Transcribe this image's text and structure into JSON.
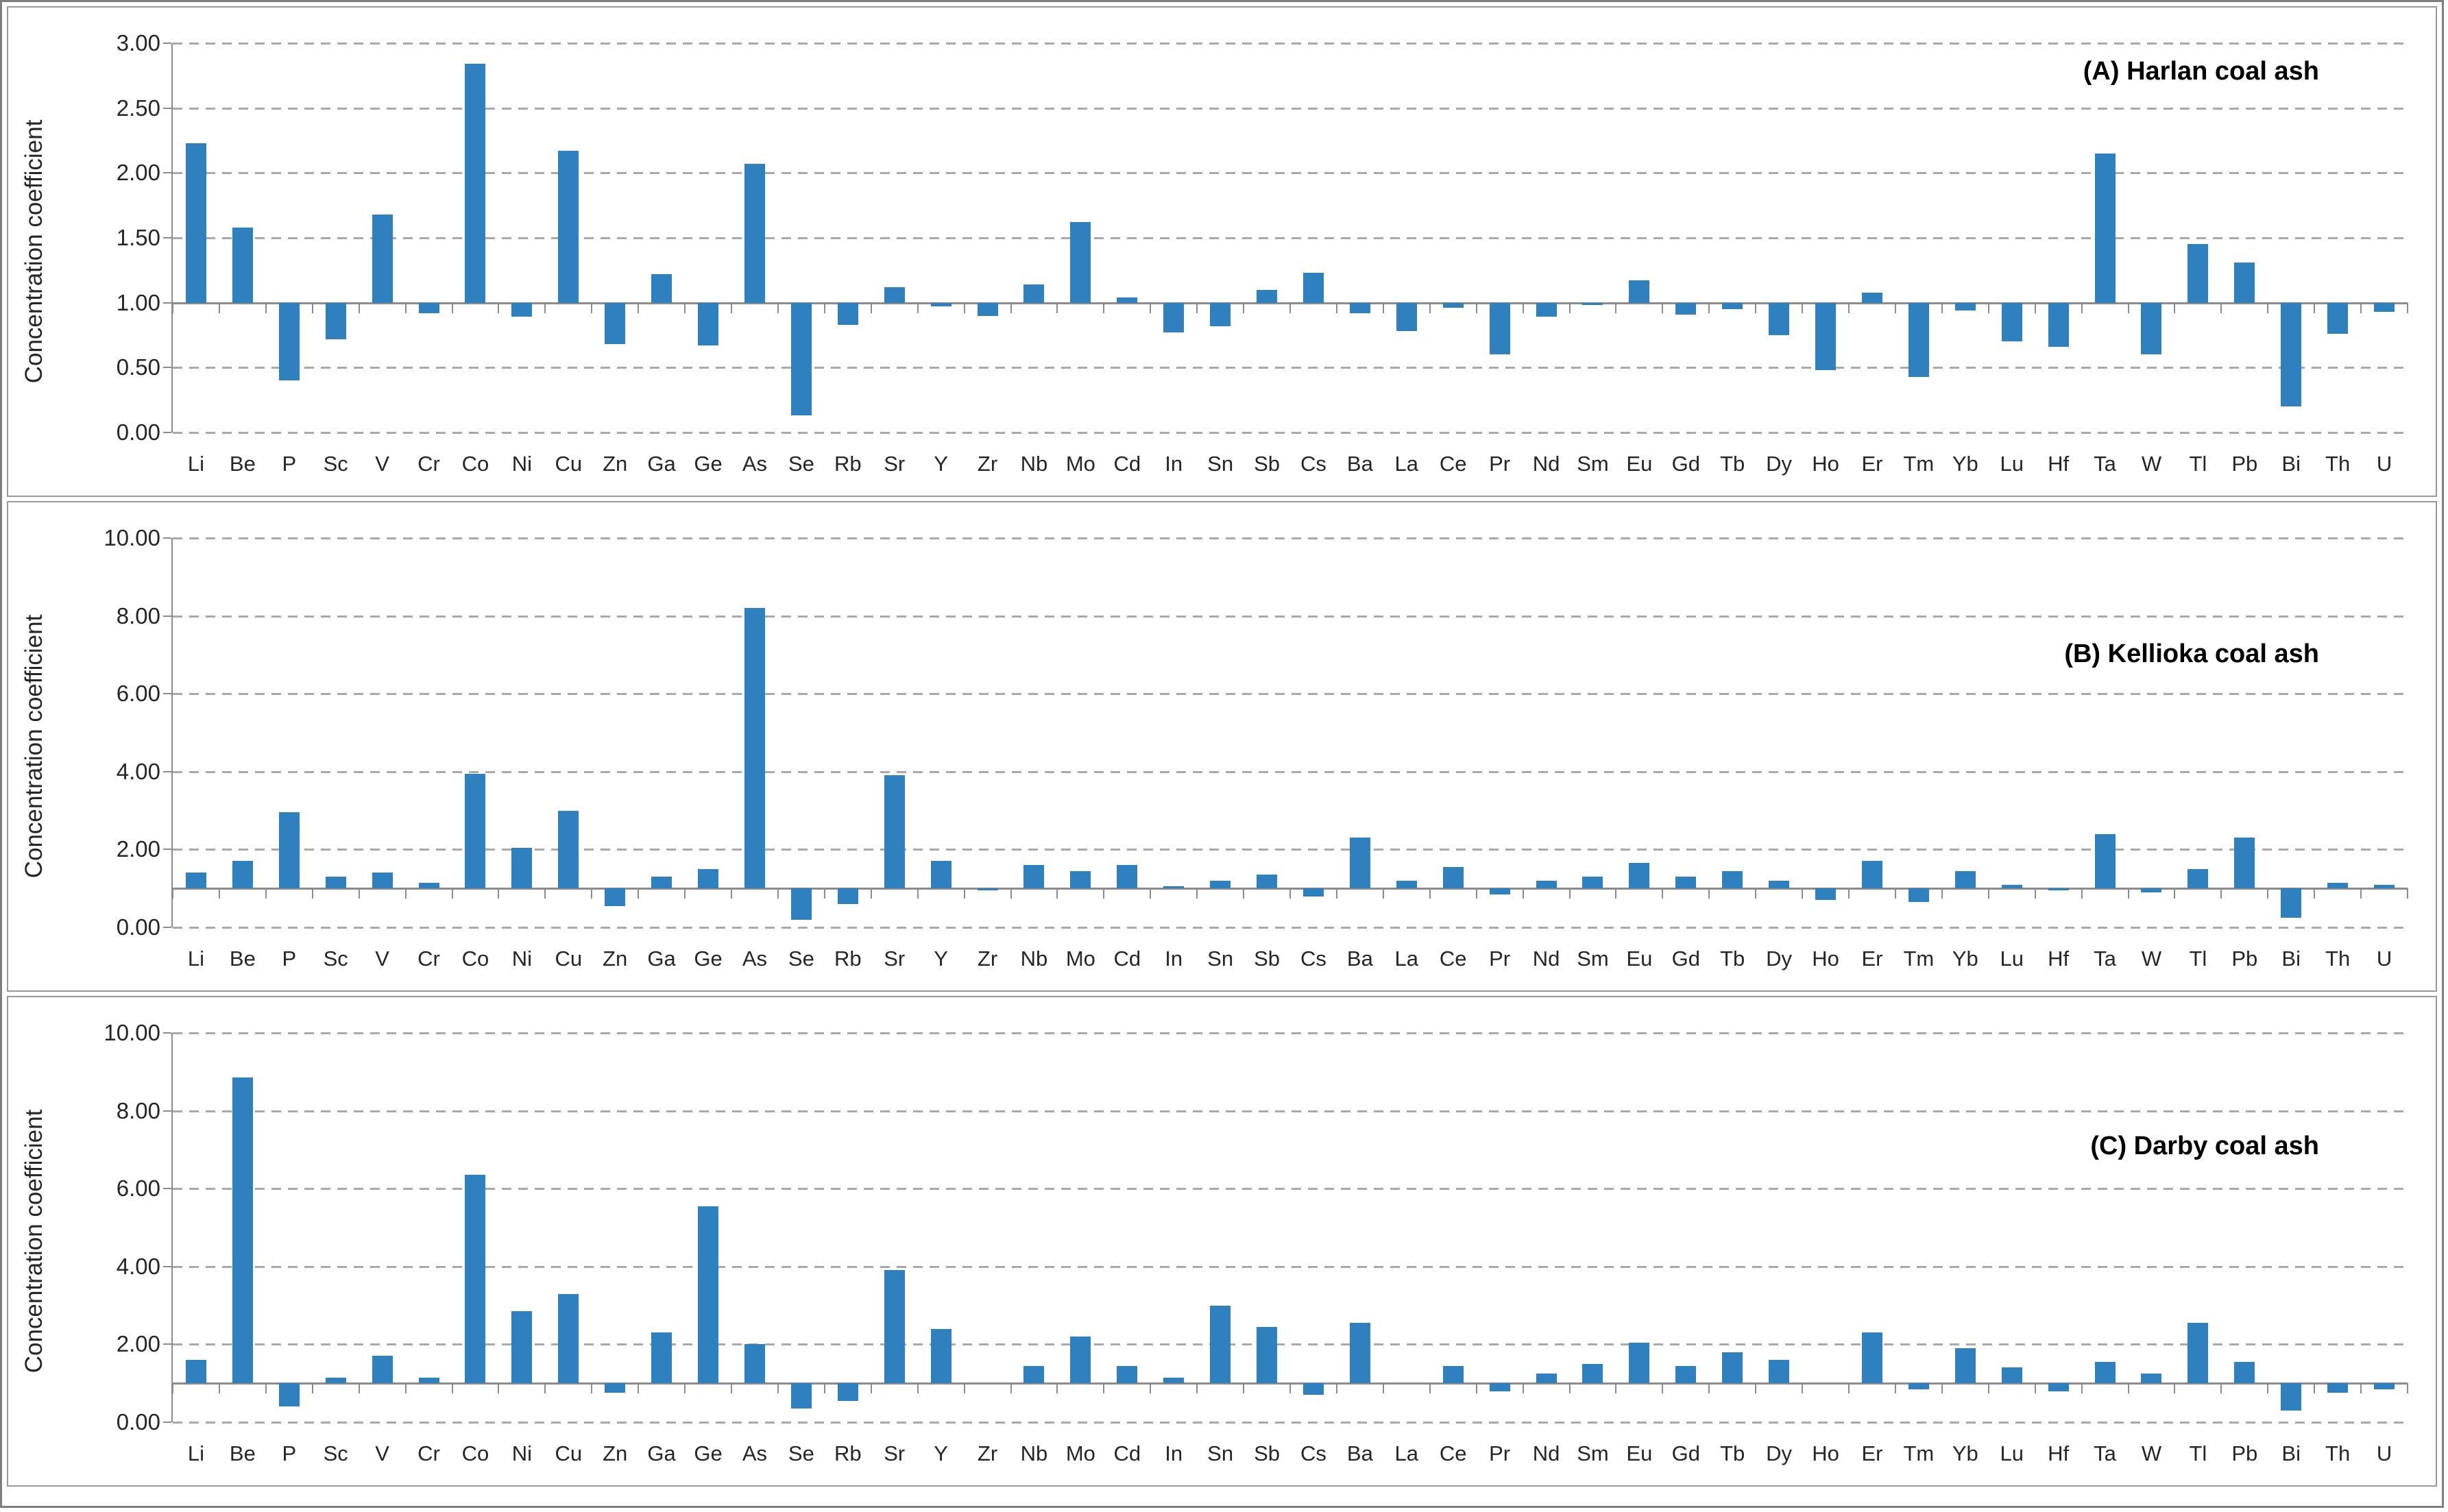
{
  "figure": {
    "bar_color": "#2e80be",
    "gridline_color": "#a9a9a9",
    "axis_color": "#8c8c8c",
    "text_color": "#262626",
    "background_color": "#ffffff"
  },
  "chart_data": [
    {
      "type": "bar",
      "title": "(A) Harlan coal ash",
      "ylabel": "Concentration coefficient",
      "xlabel": "",
      "ylim": [
        0,
        3
      ],
      "baseline": 1.0,
      "grid": true,
      "legend": "none",
      "ytick_values": [
        0,
        0.5,
        1.0,
        1.5,
        2.0,
        2.5,
        3.0
      ],
      "ytick_labels": [
        "0.00",
        "0.50",
        "1.00",
        "1.50",
        "2.00",
        "2.50",
        "3.00"
      ],
      "categories": [
        "Li",
        "Be",
        "P",
        "Sc",
        "V",
        "Cr",
        "Co",
        "Ni",
        "Cu",
        "Zn",
        "Ga",
        "Ge",
        "As",
        "Se",
        "Rb",
        "Sr",
        "Y",
        "Zr",
        "Nb",
        "Mo",
        "Cd",
        "In",
        "Sn",
        "Sb",
        "Cs",
        "Ba",
        "La",
        "Ce",
        "Pr",
        "Nd",
        "Sm",
        "Eu",
        "Gd",
        "Tb",
        "Dy",
        "Ho",
        "Er",
        "Tm",
        "Yb",
        "Lu",
        "Hf",
        "Ta",
        "W",
        "Tl",
        "Pb",
        "Bi",
        "Th",
        "U"
      ],
      "values": [
        2.23,
        1.58,
        0.4,
        0.72,
        1.68,
        0.92,
        2.84,
        0.89,
        2.17,
        0.68,
        1.22,
        0.67,
        2.07,
        0.13,
        0.83,
        1.12,
        0.97,
        0.9,
        1.14,
        1.62,
        1.04,
        0.77,
        0.82,
        1.1,
        1.23,
        0.92,
        0.78,
        0.96,
        0.6,
        0.89,
        0.98,
        1.17,
        0.91,
        0.95,
        0.75,
        0.48,
        1.08,
        0.43,
        0.94,
        0.7,
        0.66,
        2.15,
        0.6,
        1.45,
        1.31,
        0.2,
        0.76,
        0.93
      ]
    },
    {
      "type": "bar",
      "title": "(B) Kellioka coal ash",
      "ylabel": "Concentration coefficient",
      "xlabel": "",
      "ylim": [
        0,
        10
      ],
      "baseline": 1.0,
      "grid": true,
      "legend": "none",
      "ytick_values": [
        0,
        2,
        4,
        6,
        8,
        10
      ],
      "ytick_labels": [
        "0.00",
        "2.00",
        "4.00",
        "6.00",
        "8.00",
        "10.00"
      ],
      "categories": [
        "Li",
        "Be",
        "P",
        "Sc",
        "V",
        "Cr",
        "Co",
        "Ni",
        "Cu",
        "Zn",
        "Ga",
        "Ge",
        "As",
        "Se",
        "Rb",
        "Sr",
        "Y",
        "Zr",
        "Nb",
        "Mo",
        "Cd",
        "In",
        "Sn",
        "Sb",
        "Cs",
        "Ba",
        "La",
        "Ce",
        "Pr",
        "Nd",
        "Sm",
        "Eu",
        "Gd",
        "Tb",
        "Dy",
        "Ho",
        "Er",
        "Tm",
        "Yb",
        "Lu",
        "Hf",
        "Ta",
        "W",
        "Tl",
        "Pb",
        "Bi",
        "Th",
        "U"
      ],
      "values": [
        1.4,
        1.7,
        2.95,
        1.3,
        1.4,
        1.15,
        3.95,
        2.05,
        3.0,
        0.55,
        1.3,
        1.5,
        8.2,
        0.2,
        0.6,
        3.9,
        1.7,
        0.95,
        1.6,
        1.45,
        1.6,
        1.05,
        1.2,
        1.35,
        0.8,
        2.3,
        1.2,
        1.55,
        0.85,
        1.2,
        1.3,
        1.65,
        1.3,
        1.45,
        1.2,
        0.7,
        1.7,
        0.65,
        1.45,
        1.1,
        0.95,
        2.4,
        0.9,
        1.5,
        2.3,
        0.25,
        1.15,
        1.1
      ]
    },
    {
      "type": "bar",
      "title": "(C) Darby coal ash",
      "ylabel": "Concentration coefficient",
      "xlabel": "",
      "ylim": [
        0,
        10
      ],
      "baseline": 1.0,
      "grid": true,
      "legend": "none",
      "ytick_values": [
        0,
        2,
        4,
        6,
        8,
        10
      ],
      "ytick_labels": [
        "0.00",
        "2.00",
        "4.00",
        "6.00",
        "8.00",
        "10.00"
      ],
      "categories": [
        "Li",
        "Be",
        "P",
        "Sc",
        "V",
        "Cr",
        "Co",
        "Ni",
        "Cu",
        "Zn",
        "Ga",
        "Ge",
        "As",
        "Se",
        "Rb",
        "Sr",
        "Y",
        "Zr",
        "Nb",
        "Mo",
        "Cd",
        "In",
        "Sn",
        "Sb",
        "Cs",
        "Ba",
        "La",
        "Ce",
        "Pr",
        "Nd",
        "Sm",
        "Eu",
        "Gd",
        "Tb",
        "Dy",
        "Ho",
        "Er",
        "Tm",
        "Yb",
        "Lu",
        "Hf",
        "Ta",
        "W",
        "Tl",
        "Pb",
        "Bi",
        "Th",
        "U"
      ],
      "values": [
        1.6,
        8.85,
        0.4,
        1.15,
        1.7,
        1.15,
        6.35,
        2.85,
        3.3,
        0.75,
        2.3,
        5.55,
        2.0,
        0.35,
        0.55,
        3.9,
        2.4,
        1.0,
        1.45,
        2.2,
        1.45,
        1.15,
        3.0,
        2.45,
        0.7,
        2.55,
        1.0,
        1.45,
        0.8,
        1.25,
        1.5,
        2.05,
        1.45,
        1.8,
        1.6,
        1.0,
        2.3,
        0.85,
        1.9,
        1.4,
        0.8,
        1.55,
        1.25,
        2.55,
        1.55,
        0.3,
        0.75,
        0.85
      ]
    }
  ]
}
